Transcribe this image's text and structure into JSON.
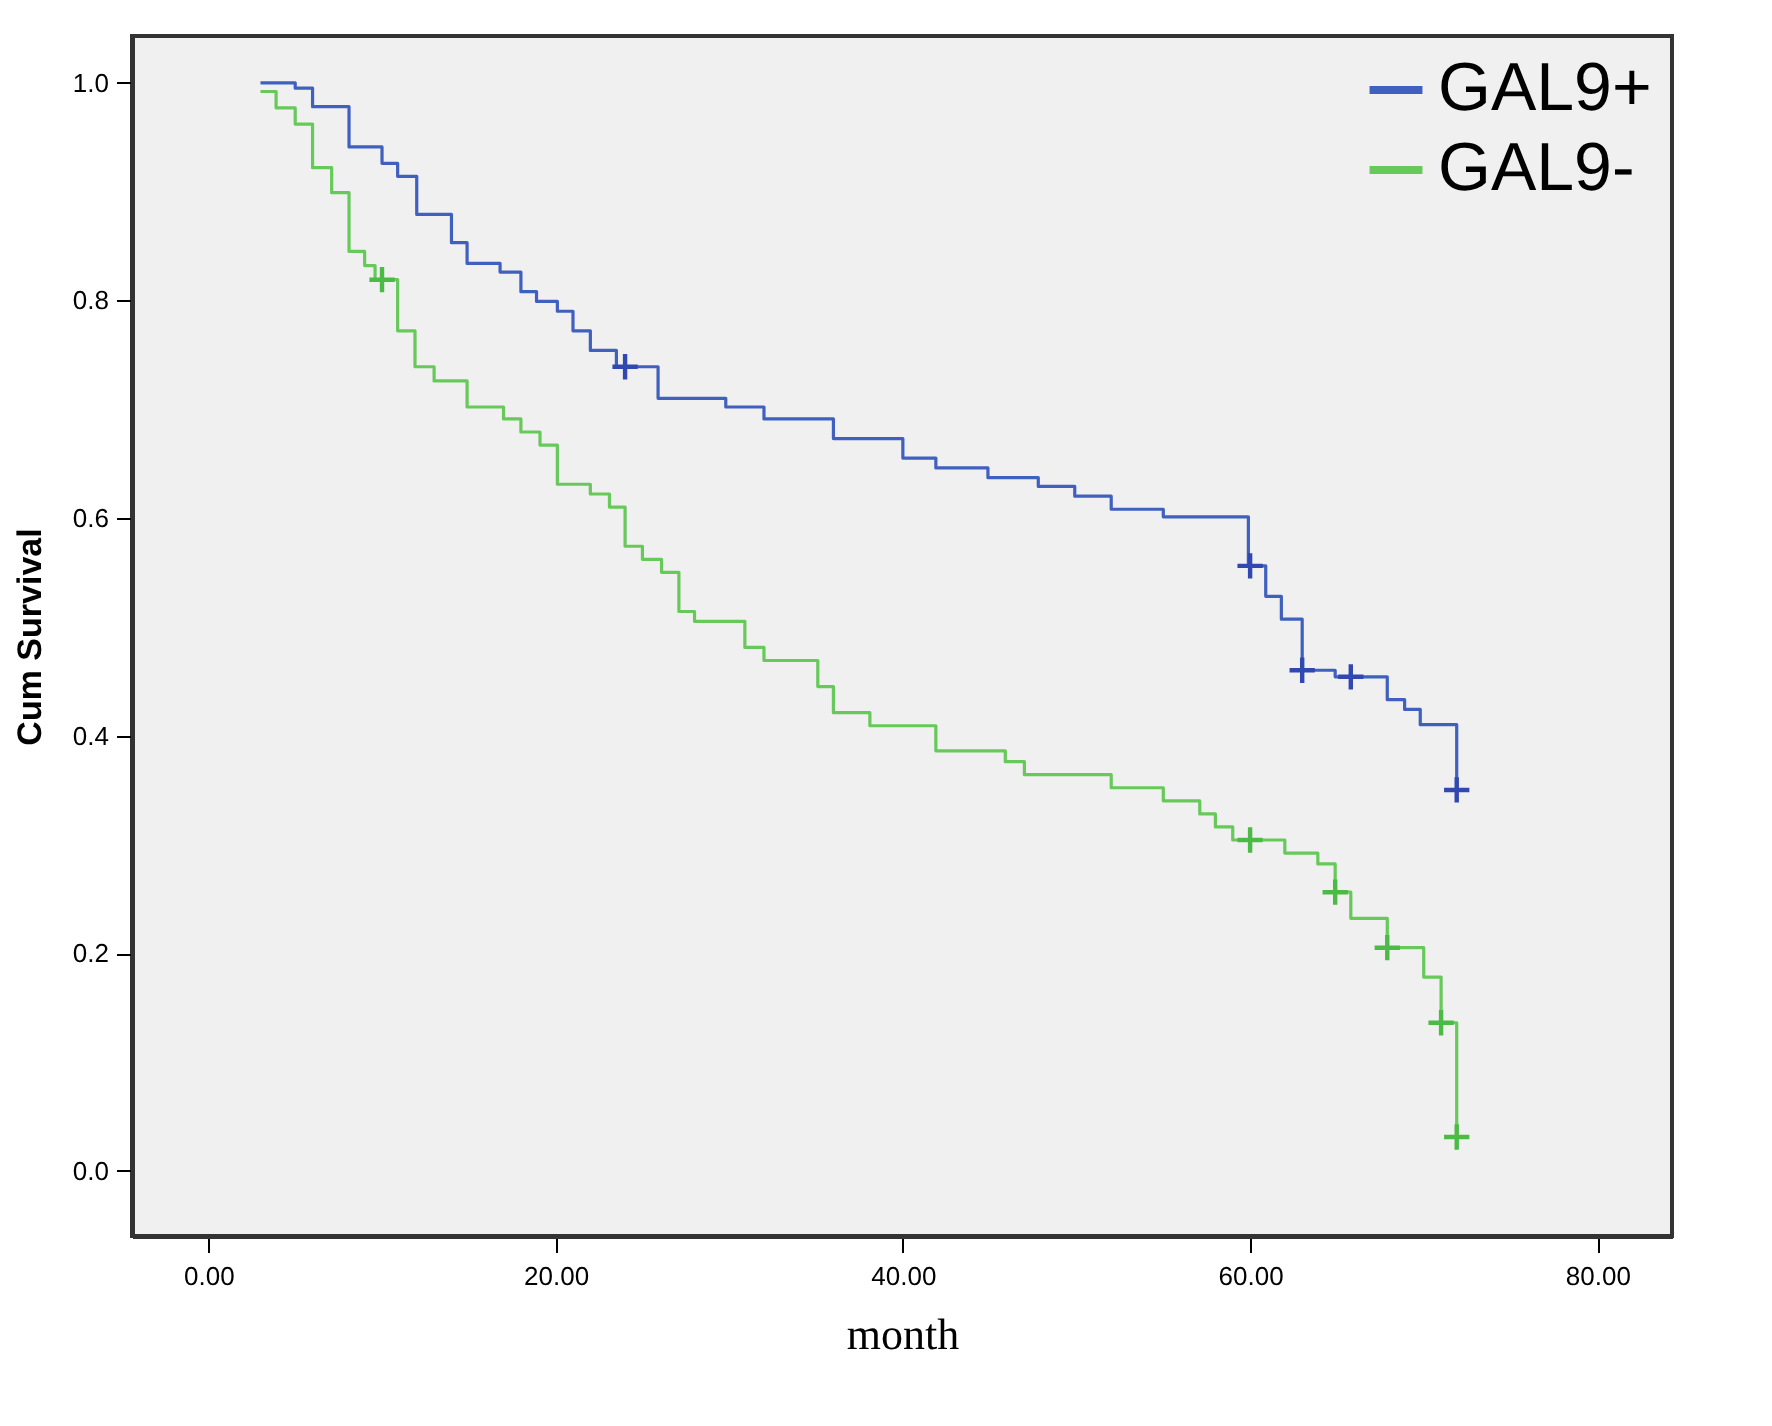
{
  "chart_data": {
    "type": "step",
    "xlabel": "month",
    "ylabel": "Cum Survival",
    "xlim": [
      -4.4,
      84.3
    ],
    "ylim": [
      -0.06,
      1.043
    ],
    "xticks": [
      {
        "value": 0,
        "label": "0.00"
      },
      {
        "value": 20,
        "label": "20.00"
      },
      {
        "value": 40,
        "label": "40.00"
      },
      {
        "value": 60,
        "label": "60.00"
      },
      {
        "value": 80,
        "label": "80.00"
      }
    ],
    "yticks": [
      {
        "value": 0,
        "label": "0.0"
      },
      {
        "value": 0.2,
        "label": "0.2"
      },
      {
        "value": 0.4,
        "label": "0.4"
      },
      {
        "value": 0.6,
        "label": "0.6"
      },
      {
        "value": 0.8,
        "label": "0.8"
      },
      {
        "value": 1,
        "label": "1.0"
      }
    ],
    "grid": false,
    "legend": "top right",
    "series": [
      {
        "name": "GAL9+",
        "color": "#4060bf",
        "x": [
          3.0,
          5.0,
          6.0,
          8.1,
          10.0,
          10.9,
          12.0,
          14.0,
          14.9,
          16.8,
          18.0,
          18.9,
          20.1,
          21.0,
          22.0,
          23.5,
          25.9,
          29.8,
          32.0,
          36.0,
          40.0,
          41.9,
          44.9,
          47.8,
          49.9,
          52.0,
          55.0,
          59.9,
          60.9,
          61.8,
          63.0,
          64.9,
          67.9,
          68.9,
          69.8,
          71.9
        ],
        "values": [
          1.0,
          0.995,
          0.978,
          0.941,
          0.926,
          0.914,
          0.879,
          0.853,
          0.834,
          0.826,
          0.808,
          0.799,
          0.79,
          0.772,
          0.754,
          0.739,
          0.71,
          0.702,
          0.691,
          0.673,
          0.655,
          0.646,
          0.637,
          0.629,
          0.62,
          0.608,
          0.601,
          0.556,
          0.528,
          0.507,
          0.46,
          0.454,
          0.433,
          0.424,
          0.41,
          0.35
        ]
      },
      {
        "name": "GAL9-",
        "color": "#66c95a",
        "x": [
          3.0,
          3.9,
          5.0,
          6.0,
          7.1,
          8.1,
          9.0,
          9.6,
          10.9,
          11.9,
          13.0,
          14.9,
          17.0,
          18.0,
          19.1,
          20.1,
          22.0,
          23.1,
          24.0,
          25.0,
          26.1,
          27.1,
          28.0,
          30.9,
          32.0,
          35.1,
          36.0,
          38.1,
          41.9,
          45.9,
          47.0,
          52.0,
          55.0,
          57.1,
          58.0,
          59.0,
          62.0,
          63.9,
          64.9,
          65.8,
          67.9,
          70.0,
          71.0,
          71.9
        ],
        "values": [
          0.992,
          0.977,
          0.962,
          0.922,
          0.899,
          0.845,
          0.832,
          0.819,
          0.772,
          0.739,
          0.726,
          0.702,
          0.691,
          0.679,
          0.667,
          0.631,
          0.622,
          0.61,
          0.574,
          0.562,
          0.55,
          0.514,
          0.505,
          0.481,
          0.469,
          0.445,
          0.421,
          0.409,
          0.386,
          0.376,
          0.364,
          0.352,
          0.34,
          0.328,
          0.316,
          0.304,
          0.292,
          0.282,
          0.256,
          0.232,
          0.205,
          0.178,
          0.136,
          0.031
        ]
      },
      {
        "type": "scatter",
        "marker": "cross",
        "color": "#3048b0",
        "x": [
          24.0,
          60.0,
          63.0,
          65.8,
          71.9
        ],
        "values": [
          0.739,
          0.556,
          0.46,
          0.454,
          0.35
        ]
      },
      {
        "type": "scatter",
        "marker": "cross",
        "color": "#4cbb45",
        "x": [
          10.0,
          60.0,
          64.9,
          67.9,
          71.0,
          71.9
        ],
        "values": [
          0.819,
          0.304,
          0.256,
          0.205,
          0.136,
          0.031
        ]
      }
    ]
  }
}
